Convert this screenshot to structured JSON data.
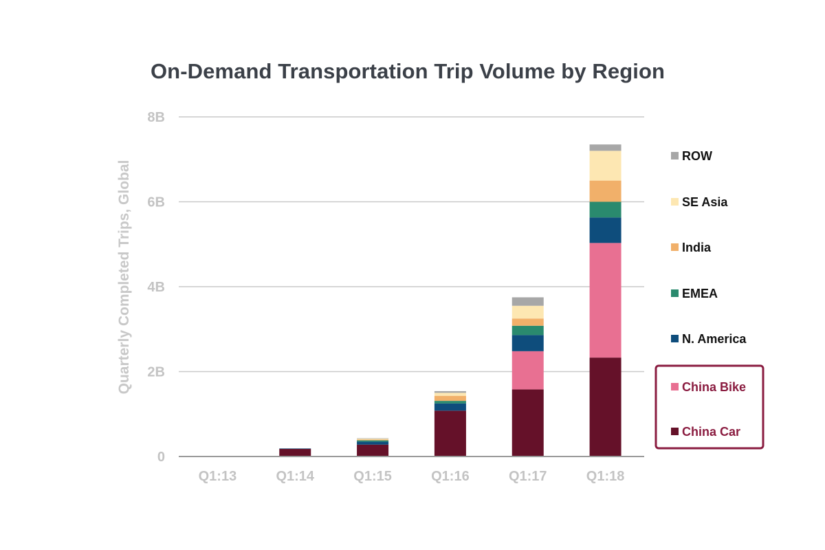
{
  "chart_data": {
    "type": "bar",
    "stacked": true,
    "title": "On-Demand Transportation Trip Volume by Region",
    "ylabel": "Quarterly Completed Trips, Global",
    "xlabel": "",
    "categories": [
      "Q1:13",
      "Q1:14",
      "Q1:15",
      "Q1:16",
      "Q1:17",
      "Q1:18"
    ],
    "ylim": [
      0,
      8
    ],
    "yticks": [
      0,
      2,
      4,
      6,
      8
    ],
    "ytick_labels": [
      "0",
      "2B",
      "4B",
      "6B",
      "8B"
    ],
    "unit": "billion trips",
    "grid": true,
    "legend_position": "right",
    "highlighted_legend_group": [
      "China Bike",
      "China Car"
    ],
    "highlight_color": "#8a1c40",
    "series": [
      {
        "name": "China Car",
        "color": "#651129",
        "values": [
          0.0,
          0.18,
          0.28,
          1.08,
          1.58,
          2.33
        ]
      },
      {
        "name": "China Bike",
        "color": "#e87092",
        "values": [
          0.0,
          0.0,
          0.0,
          0.0,
          0.9,
          2.7
        ]
      },
      {
        "name": "N. America",
        "color": "#0e4d7c",
        "values": [
          0.0,
          0.01,
          0.07,
          0.17,
          0.38,
          0.6
        ]
      },
      {
        "name": "EMEA",
        "color": "#2a8a6e",
        "values": [
          0.0,
          0.0,
          0.03,
          0.06,
          0.22,
          0.37
        ]
      },
      {
        "name": "India",
        "color": "#f1b06a",
        "values": [
          0.0,
          0.0,
          0.02,
          0.12,
          0.17,
          0.5
        ]
      },
      {
        "name": "SE Asia",
        "color": "#fde7b2",
        "values": [
          0.0,
          0.0,
          0.02,
          0.07,
          0.3,
          0.7
        ]
      },
      {
        "name": "ROW",
        "color": "#a7a7a7",
        "values": [
          0.0,
          0.0,
          0.01,
          0.04,
          0.2,
          0.15
        ]
      }
    ]
  }
}
